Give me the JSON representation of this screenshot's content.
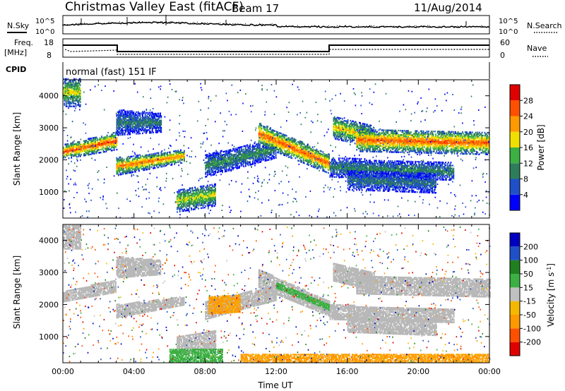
{
  "header": {
    "title": "Christmas Valley East (fitACF)",
    "beam": "Beam 17",
    "date": "11/Aug/2014"
  },
  "top_panels": {
    "nsky_label": "N.Sky",
    "nsearch_label": "N.Search",
    "noise_ticks": [
      "10^5",
      "10^0"
    ],
    "freq_label_1": "Freq.",
    "freq_label_2": "[MHz]",
    "freq_ticks": [
      "18",
      "8"
    ],
    "nave_label": "Nave",
    "nave_ticks": [
      "60",
      "0"
    ],
    "cpid_label": "CPID",
    "cpid_text": "normal (fast) 151 IF"
  },
  "colors": {
    "power_scale": [
      "#0000ff",
      "#2050c8",
      "#2e7d5a",
      "#3cb043",
      "#f0e000",
      "#ff9900",
      "#ff5000",
      "#e00000"
    ],
    "velocity_scale": [
      "#e00000",
      "#ff5000",
      "#ff9900",
      "#f5b800",
      "#c0c0c0",
      "#3cb043",
      "#208020",
      "#2050c8",
      "#0000c0"
    ],
    "ground_scatter": "#b8b8b8"
  },
  "chart_data": [
    {
      "type": "heatmap",
      "name": "power",
      "ylabel": "Slant Range [km]",
      "colorbar_label": "Power [dB]",
      "colorbar_ticks": [
        4,
        8,
        12,
        16,
        20,
        24,
        28
      ],
      "colorbar_range": [
        0,
        32
      ],
      "y_ticks": [
        1000,
        2000,
        3000,
        4000
      ],
      "ylim": [
        180,
        4500
      ],
      "xlim": [
        0,
        24
      ],
      "bands": [
        {
          "t": [
            0,
            3.0
          ],
          "r0": [
            2150,
            2450
          ],
          "r1": [
            2300,
            2700
          ],
          "core": 27
        },
        {
          "t": [
            3.0,
            6.8
          ],
          "r0": [
            1650,
            2050
          ],
          "r1": [
            1900,
            2150
          ],
          "core": 24
        },
        {
          "t": [
            6.4,
            8.6
          ],
          "r0": [
            500,
            700
          ],
          "r1": [
            900,
            1100
          ],
          "core": 18
        },
        {
          "t": [
            8.0,
            12.0
          ],
          "r0": [
            1600,
            2200
          ],
          "r1": [
            2000,
            2500
          ],
          "core": 12
        },
        {
          "t": [
            11.0,
            15.0
          ],
          "r0": [
            2600,
            1700
          ],
          "r1": [
            3000,
            2000
          ],
          "core": 26
        },
        {
          "t": [
            15.2,
            17.5
          ],
          "r0": [
            2800,
            2500
          ],
          "r1": [
            3200,
            2900
          ],
          "core": 20
        },
        {
          "t": [
            16.5,
            24.0
          ],
          "r0": [
            2400,
            2300
          ],
          "r1": [
            2800,
            2700
          ],
          "core": 26
        },
        {
          "t": [
            15.0,
            22.0
          ],
          "r0": [
            1600,
            1500
          ],
          "r1": [
            1900,
            1750
          ],
          "core": 11
        },
        {
          "t": [
            16.0,
            21.0
          ],
          "r0": [
            1200,
            1100
          ],
          "r1": [
            1500,
            1400
          ],
          "core": 9
        },
        {
          "t": [
            3.0,
            5.5
          ],
          "r0": [
            2900,
            3000
          ],
          "r1": [
            3400,
            3300
          ],
          "core": 10
        },
        {
          "t": [
            0,
            1.0
          ],
          "r0": [
            3800,
            3800
          ],
          "r1": [
            4400,
            4400
          ],
          "core": 18
        }
      ]
    },
    {
      "type": "heatmap",
      "name": "velocity",
      "xlabel": "Time UT",
      "ylabel": "Slant Range [km]",
      "colorbar_label": "Velocity [m s^-1]",
      "colorbar_ticks": [
        200,
        100,
        50,
        15,
        -15,
        -50,
        -100,
        -200
      ],
      "y_ticks": [
        1000,
        2000,
        3000,
        4000
      ],
      "x_ticks": [
        "00:00",
        "04:00",
        "08:00",
        "12:00",
        "16:00",
        "20:00",
        "00:00"
      ],
      "ylim": [
        180,
        4500
      ],
      "xlim": [
        0,
        24
      ],
      "features": [
        {
          "t": [
            8.2,
            10.0
          ],
          "r0": [
            1700,
            1750
          ],
          "r1": [
            2250,
            2300
          ],
          "v": -60
        },
        {
          "t": [
            6.0,
            9.0
          ],
          "r0": [
            180,
            180
          ],
          "r1": [
            600,
            600
          ],
          "v": 30
        },
        {
          "t": [
            12.0,
            15.0
          ],
          "r0": [
            2500,
            1800
          ],
          "r1": [
            2700,
            2000
          ],
          "v": 30
        },
        {
          "t": [
            10.0,
            24.0
          ],
          "r0": [
            180,
            180
          ],
          "r1": [
            450,
            450
          ],
          "v": -60
        }
      ]
    }
  ]
}
